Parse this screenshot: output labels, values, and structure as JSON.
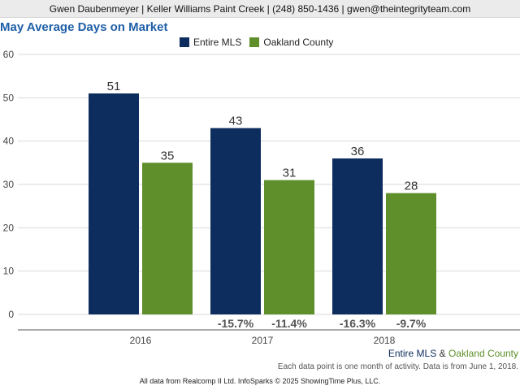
{
  "header": {
    "text": "Gwen Daubenmeyer | Keller Williams Paint Creek | (248) 850-1436 | gwen@theintegrityteam.com"
  },
  "colors": {
    "entire_mls": "#0d2d5e",
    "oakland_county": "#5f8f2b",
    "title": "#1f5fa8"
  },
  "chart_data": {
    "type": "bar",
    "title": "May Average Days on Market",
    "categories": [
      "2016",
      "2017",
      "2018"
    ],
    "series": [
      {
        "name": "Entire MLS",
        "values": [
          51,
          43,
          36
        ],
        "change_labels": [
          "",
          "-15.7%",
          "-16.3%"
        ]
      },
      {
        "name": "Oakland County",
        "values": [
          35,
          31,
          28
        ],
        "change_labels": [
          "",
          "-11.4%",
          "-9.7%"
        ]
      }
    ],
    "ylim": [
      0,
      60
    ],
    "yticks": [
      0,
      10,
      20,
      30,
      40,
      50,
      60
    ],
    "grid": true,
    "legend": "top"
  },
  "footer": {
    "series_a": "Entire MLS",
    "separator": "&",
    "series_b": "Oakland County",
    "note": "Each data point is one month of activity. Data is from June 1, 2018.",
    "source": "All data from Realcomp II Ltd. InfoSparks © 2025 ShowingTime Plus, LLC."
  }
}
